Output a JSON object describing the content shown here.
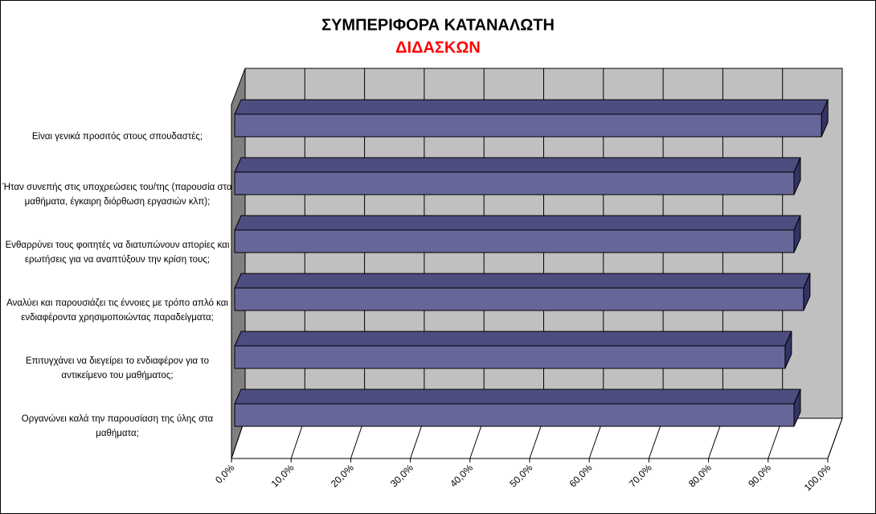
{
  "chart_data": {
    "type": "bar3d_horizontal",
    "title": "ΣΥΜΠΕΡΙΦΟΡΑ ΚΑΤΑΝΑΛΩΤΗ",
    "subtitle": "ΔΙΔΑΣΚΩΝ",
    "categories": [
      "Είναι γενικά προσιτός στους σπουδαστές;",
      "Ήταν συνεπής στις υποχρεώσεις του/της (παρουσία στα μαθήματα, έγκαιρη διόρθωση εργασιών κλπ);",
      "Ενθαρρύνει τους φοιτητές να διατυπώνουν απορίες και ερωτήσεις για να αναπτύξουν την κρίση τους;",
      "Αναλύει και παρουσιάζει τις έννοιες με τρόπο απλό και ενδιαφέροντα χρησιμοποιώντας παραδείγματα;",
      "Επιτυγχάνει να διεγείρει το ενδιαφέρον για το αντικείμενο του μαθήματος;",
      "Οργανώνει καλά την παρουσίαση της ύλης στα μαθήματα;"
    ],
    "values": [
      98.4,
      93.8,
      93.8,
      95.4,
      92.3,
      93.8
    ],
    "color": "#666699",
    "xlim": [
      0,
      100
    ],
    "xticks": [
      {
        "value": 0,
        "label": "0,0%"
      },
      {
        "value": 10,
        "label": "10,0%"
      },
      {
        "value": 20,
        "label": "20,0%"
      },
      {
        "value": 30,
        "label": "30,0%"
      },
      {
        "value": 40,
        "label": "40,0%"
      },
      {
        "value": 50,
        "label": "50,0%"
      },
      {
        "value": 60,
        "label": "60,0%"
      },
      {
        "value": 70,
        "label": "70,0%"
      },
      {
        "value": 80,
        "label": "80,0%"
      },
      {
        "value": 90,
        "label": "90,0%"
      },
      {
        "value": 100,
        "label": "100,0%"
      }
    ],
    "grid": true
  }
}
